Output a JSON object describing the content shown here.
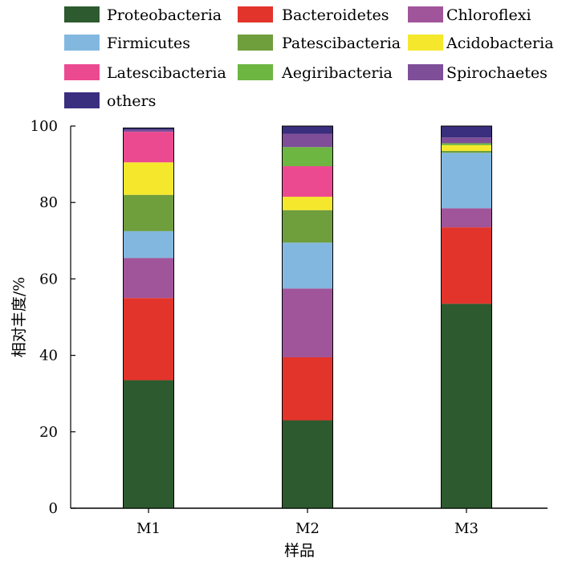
{
  "chart_data": {
    "type": "bar",
    "stacked": true,
    "categories": [
      "M1",
      "M2",
      "M3"
    ],
    "xlabel": "样品",
    "ylabel": "相对丰度/%",
    "ylim": [
      0,
      100
    ],
    "yticks": [
      0,
      20,
      40,
      60,
      80,
      100
    ],
    "grid": false,
    "legend_position": "top",
    "series": [
      {
        "name": "Proteobacteria",
        "color": "#2d5a2e",
        "values": [
          33.5,
          23.0,
          53.5
        ]
      },
      {
        "name": "Bacteroidetes",
        "color": "#e3342b",
        "values": [
          21.5,
          16.5,
          20.0
        ]
      },
      {
        "name": "Chloroflexi",
        "color": "#a0559a",
        "values": [
          10.5,
          18.0,
          5.0
        ]
      },
      {
        "name": "Firmicutes",
        "color": "#82b8df",
        "values": [
          7.0,
          12.0,
          14.5
        ]
      },
      {
        "name": "Patescibacteria",
        "color": "#6f9e3d",
        "values": [
          9.5,
          8.5,
          0.5
        ]
      },
      {
        "name": "Acidobacteria",
        "color": "#f5e82c",
        "values": [
          8.5,
          3.5,
          1.5
        ]
      },
      {
        "name": "Latescibacteria",
        "color": "#ec4a90",
        "values": [
          8.0,
          8.0,
          0.0
        ]
      },
      {
        "name": "Aegiribacteria",
        "color": "#6cb641",
        "values": [
          0.0,
          5.0,
          0.5
        ]
      },
      {
        "name": "Spirochaetes",
        "color": "#7e4f98",
        "values": [
          0.5,
          3.5,
          1.5
        ]
      },
      {
        "name": "others",
        "color": "#3a2e7e",
        "values": [
          0.5,
          2.0,
          3.0
        ]
      }
    ]
  }
}
